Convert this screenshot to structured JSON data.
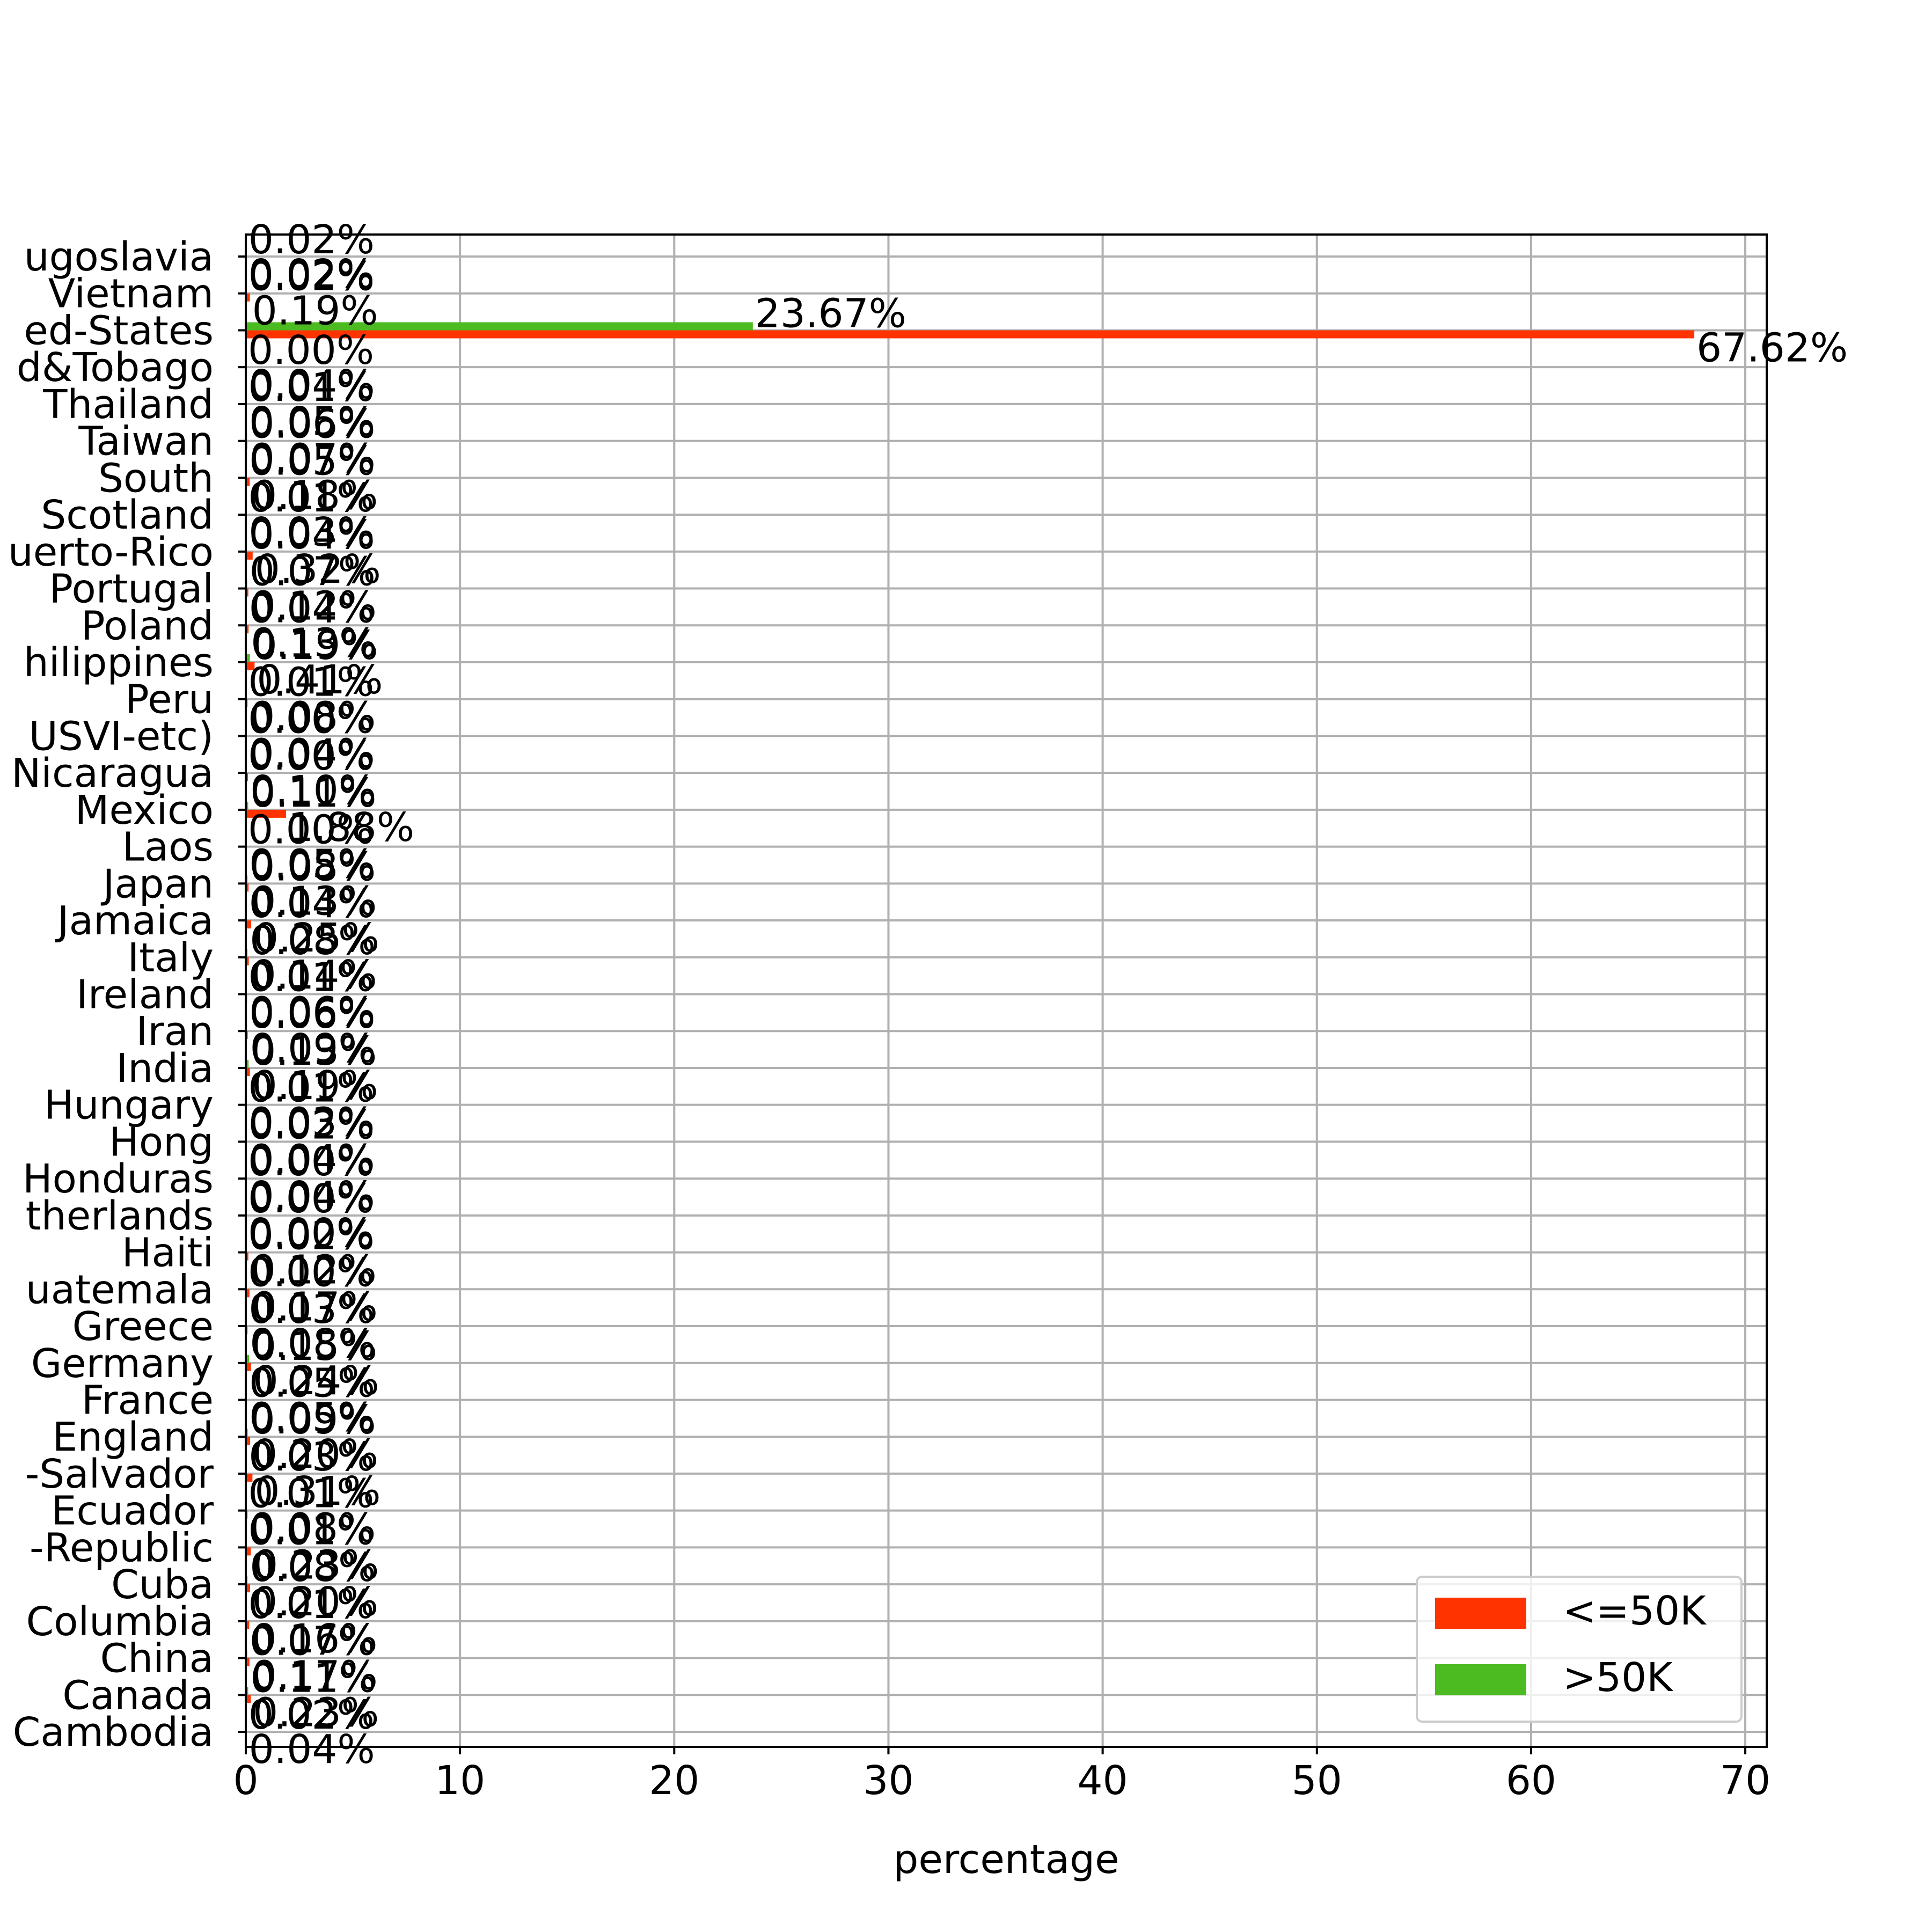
{
  "chart_data": {
    "type": "bar",
    "orientation": "horizontal",
    "title": "",
    "xlabel": "percentage",
    "ylabel": "",
    "xlim": [
      0,
      71
    ],
    "xticks": [
      0,
      10,
      20,
      30,
      40,
      50,
      60,
      70
    ],
    "grid": true,
    "legend_position": "lower-right",
    "categories": [
      "Cambodia",
      "Canada",
      "China",
      "Columbia",
      "Cuba",
      "Dominican-Republic",
      "Ecuador",
      "El-Salvador",
      "England",
      "France",
      "Germany",
      "Greece",
      "Guatemala",
      "Haiti",
      "Holand-Netherlands",
      "Honduras",
      "Hong",
      "Hungary",
      "India",
      "Iran",
      "Ireland",
      "Italy",
      "Jamaica",
      "Japan",
      "Laos",
      "Mexico",
      "Nicaragua",
      "Outlying-US(Guam-USVI-etc)",
      "Peru",
      "Philippines",
      "Poland",
      "Portugal",
      "Puerto-Rico",
      "Scotland",
      "South",
      "Taiwan",
      "Thailand",
      "Trinadad&Tobago",
      "United-States",
      "Vietnam",
      "Yugoslavia"
    ],
    "category_labels_visible": [
      "Cambodia",
      "Canada",
      "China",
      "Columbia",
      "Cuba",
      "-Republic",
      "Ecuador",
      "-Salvador",
      "England",
      "France",
      "Germany",
      "Greece",
      "uatemala",
      "Haiti",
      "therlands",
      "Honduras",
      "Hong",
      "Hungary",
      "India",
      "Iran",
      "Ireland",
      "Italy",
      "Jamaica",
      "Japan",
      "Laos",
      "Mexico",
      "Nicaragua",
      "USVI-etc)",
      "Peru",
      "hilippines",
      "Poland",
      "Portugal",
      "uerto-Rico",
      "Scotland",
      "South",
      "Taiwan",
      "Thailand",
      "d&Tobago",
      "ed-States",
      "Vietnam",
      "ugoslavia"
    ],
    "series": [
      {
        "name": "<=50K",
        "color": "#ff3300",
        "values": [
          0.04,
          0.23,
          0.17,
          0.16,
          0.2,
          0.23,
          0.08,
          0.31,
          0.2,
          0.05,
          0.24,
          0.08,
          0.17,
          0.12,
          0.0,
          0.04,
          0.04,
          0.03,
          0.19,
          0.09,
          0.06,
          0.14,
          0.25,
          0.13,
          0.05,
          1.88,
          0.1,
          0.04,
          0.08,
          0.41,
          0.13,
          0.12,
          0.32,
          0.03,
          0.18,
          0.07,
          0.05,
          0.04,
          67.62,
          0.19,
          0.02
        ],
        "labels": [
          "0.04%",
          "0.23%",
          "0.17%",
          "0.16%",
          "0.20%",
          "0.23%",
          "0.08%",
          "0.31%",
          "0.20%",
          "0.05%",
          "0.24%",
          "0.08%",
          "0.17%",
          "0.12%",
          "0.00%",
          "0.04%",
          "0.04%",
          "0.03%",
          "0.19%",
          "0.09%",
          "0.06%",
          "0.14%",
          "0.25%",
          "0.13%",
          "0.05%",
          "1.88%",
          "0.10%",
          "0.04%",
          "0.08%",
          "0.41%",
          "0.13%",
          "0.12%",
          "0.32%",
          "0.03%",
          "0.18%",
          "0.07%",
          "0.05%",
          "0.04%",
          "67.62%",
          "0.19%",
          "0.02%"
        ]
      },
      {
        "name": ">50K",
        "color": "#4cbb22",
        "values": [
          0.02,
          0.11,
          0.07,
          0.01,
          0.08,
          0.01,
          0.01,
          0.03,
          0.09,
          0.05,
          0.15,
          0.03,
          0.0,
          0.02,
          0.0,
          0.0,
          0.02,
          0.01,
          0.13,
          0.06,
          0.01,
          0.08,
          0.04,
          0.08,
          0.0,
          0.11,
          0.0,
          0.0,
          0.01,
          0.19,
          0.04,
          0.07,
          0.04,
          0.01,
          0.05,
          0.06,
          0.01,
          0.0,
          23.67,
          0.02,
          0.02
        ],
        "labels": [
          "0.02%",
          "0.11%",
          "0.07%",
          "0.01%",
          "0.08%",
          "0.01%",
          "0.01%",
          "0.03%",
          "0.09%",
          "0.05%",
          "0.15%",
          "0.03%",
          "0.00%",
          "0.02%",
          "0.00%",
          "0.00%",
          "0.02%",
          "0.01%",
          "0.13%",
          "0.06%",
          "0.01%",
          "0.08%",
          "0.04%",
          "0.08%",
          "0.00%",
          "0.11%",
          "0.00%",
          "0.00%",
          "0.01%",
          "0.19%",
          "0.04%",
          "0.07%",
          "0.04%",
          "0.01%",
          "0.05%",
          "0.06%",
          "0.01%",
          "0.00%",
          "23.67%",
          "0.02%",
          "0.02%"
        ]
      }
    ]
  }
}
